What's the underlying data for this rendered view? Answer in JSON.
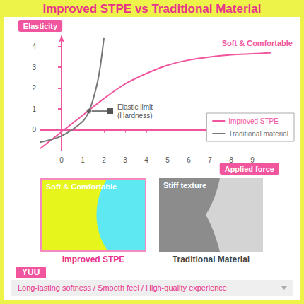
{
  "title": "Improved STPE vs Traditional Material",
  "chart_data": {
    "type": "line",
    "x_label": "Applied force",
    "y_label": "Elasticity",
    "xlim": [
      -1,
      10
    ],
    "xticks": [
      0,
      1,
      2,
      3,
      4,
      5,
      6,
      7,
      8,
      9
    ],
    "ylim": [
      -1,
      4.5
    ],
    "yticks": [
      0,
      1,
      2,
      3,
      4
    ],
    "grid": false,
    "legend": "right",
    "series": [
      {
        "name": "Improved STPE",
        "color": "#f0559e",
        "x": [
          -1,
          0,
          1,
          2,
          3,
          4,
          5,
          6,
          7,
          8,
          9,
          9.9
        ],
        "values": [
          -0.9,
          -0.1,
          0.7,
          1.5,
          2.2,
          2.7,
          3.1,
          3.35,
          3.5,
          3.6,
          3.65,
          3.7
        ]
      },
      {
        "name": "Traditional material",
        "color": "#777777",
        "x": [
          -1,
          0,
          1,
          1.3,
          1.5,
          1.7,
          1.85,
          2.0
        ],
        "values": [
          -0.6,
          -0.3,
          0.4,
          0.9,
          1.5,
          2.3,
          3.2,
          4.4
        ]
      }
    ],
    "annotations": [
      {
        "text": "Soft & Comfortable",
        "x": 9.9,
        "y": 3.7,
        "color": "#f0559e"
      },
      {
        "text": "Elastic limit\n(Hardness)",
        "x": 1.3,
        "y": 0.9,
        "marker": "circle",
        "color": "#555555"
      }
    ]
  },
  "panels": [
    {
      "label": "Soft & Comfortable",
      "caption": "Improved STPE"
    },
    {
      "label": "Stiff texture",
      "caption": "Traditional Material"
    }
  ],
  "footer": {
    "tag": "YUU",
    "text": "Long-lasting softness / Smooth feel / High-quality experience"
  }
}
